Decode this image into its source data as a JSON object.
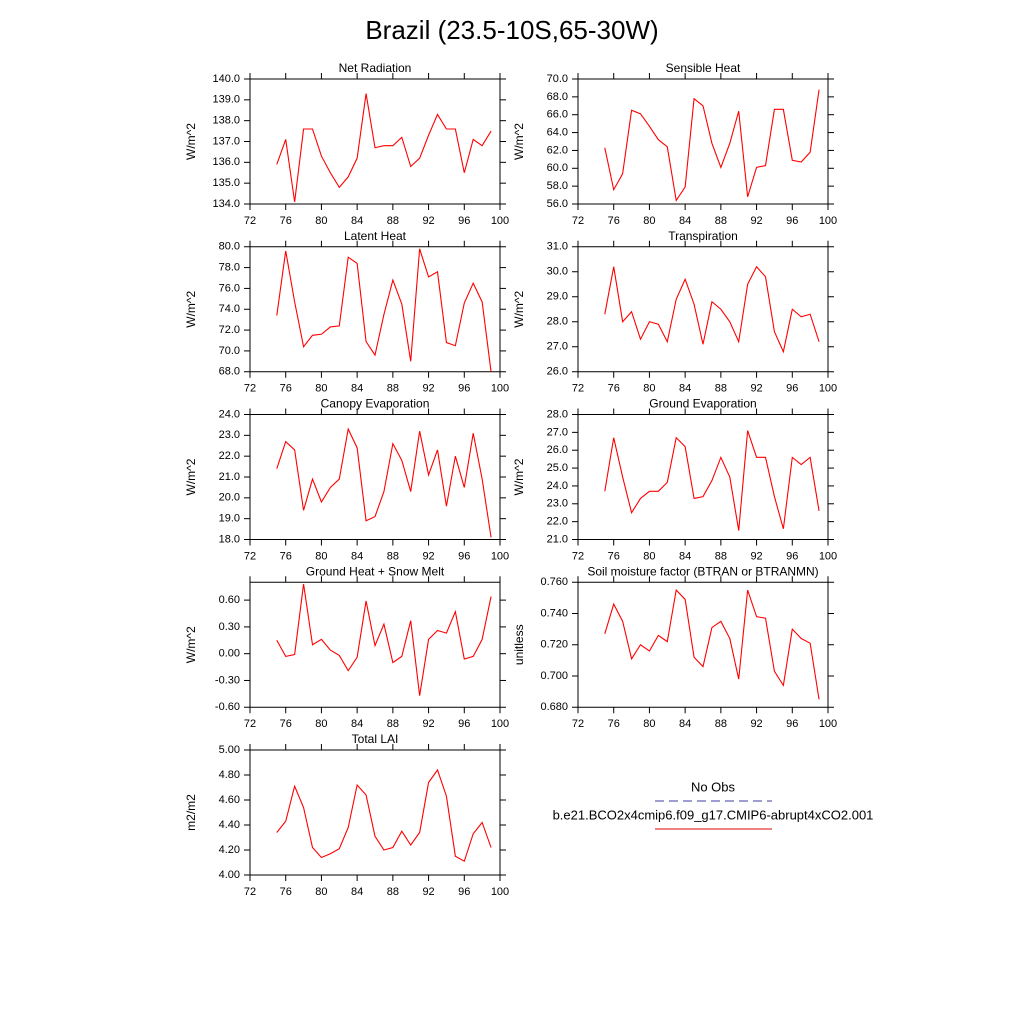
{
  "title": "Brazil (23.5-10S,65-30W)",
  "legend": [
    {
      "name": "No Obs",
      "color": "#3c3ca0",
      "style": "dashed"
    },
    {
      "name": "b.e21.BCO2x4cmip6.f09_g17.CMIP6-abrupt4xCO2.001",
      "color": "#e00000",
      "style": "solid"
    }
  ],
  "chart_data": [
    {
      "type": "line",
      "title": "Net Radiation",
      "ylabel": "W/m^2",
      "color": "#ff0000",
      "x": [
        75,
        76,
        77,
        78,
        79,
        80,
        81,
        82,
        83,
        84,
        85,
        86,
        87,
        88,
        89,
        90,
        91,
        92,
        93,
        94,
        95,
        96,
        97,
        98,
        99
      ],
      "values": [
        135.9,
        137.1,
        134.1,
        137.6,
        137.6,
        136.3,
        135.5,
        134.8,
        135.3,
        136.2,
        139.3,
        136.7,
        136.8,
        136.8,
        137.2,
        135.8,
        136.2,
        137.3,
        138.3,
        137.6,
        137.6,
        135.5,
        137.1,
        136.8,
        137.5
      ],
      "xlim": [
        72,
        100
      ],
      "xticks": [
        72,
        76,
        80,
        84,
        88,
        92,
        96,
        100
      ],
      "ylim": [
        134,
        140
      ],
      "yticks": [
        {
          "value": 134,
          "label": "134.0"
        },
        {
          "value": 135,
          "label": "135.0"
        },
        {
          "value": 136,
          "label": "136.0"
        },
        {
          "value": 137,
          "label": "137.0"
        },
        {
          "value": 138,
          "label": "138.0"
        },
        {
          "value": 139,
          "label": "139.0"
        },
        {
          "value": 140,
          "label": "140.0"
        }
      ]
    },
    {
      "type": "line",
      "title": "Sensible Heat",
      "ylabel": "W/m^2",
      "color": "#ff0000",
      "x": [
        75,
        76,
        77,
        78,
        79,
        80,
        81,
        82,
        83,
        84,
        85,
        86,
        87,
        88,
        89,
        90,
        91,
        92,
        93,
        94,
        95,
        96,
        97,
        98,
        99
      ],
      "values": [
        62.3,
        57.6,
        59.4,
        66.5,
        66.1,
        64.7,
        63.2,
        62.4,
        56.4,
        57.9,
        67.8,
        67.0,
        62.8,
        60.1,
        62.8,
        66.4,
        56.8,
        60.1,
        60.3,
        66.6,
        66.6,
        60.9,
        60.7,
        61.8,
        68.8
      ],
      "xlim": [
        72,
        100
      ],
      "xticks": [
        72,
        76,
        80,
        84,
        88,
        92,
        96,
        100
      ],
      "ylim": [
        56,
        70
      ],
      "yticks": [
        {
          "value": 56,
          "label": "56.0"
        },
        {
          "value": 58,
          "label": "58.0"
        },
        {
          "value": 60,
          "label": "60.0"
        },
        {
          "value": 62,
          "label": "62.0"
        },
        {
          "value": 64,
          "label": "64.0"
        },
        {
          "value": 66,
          "label": "66.0"
        },
        {
          "value": 68,
          "label": "68.0"
        },
        {
          "value": 70,
          "label": "70.0"
        }
      ]
    },
    {
      "type": "line",
      "title": "Latent Heat",
      "ylabel": "W/m^2",
      "color": "#ff0000",
      "x": [
        75,
        76,
        77,
        78,
        79,
        80,
        81,
        82,
        83,
        84,
        85,
        86,
        87,
        88,
        89,
        90,
        91,
        92,
        93,
        94,
        95,
        96,
        97,
        98,
        99
      ],
      "values": [
        73.4,
        79.6,
        74.7,
        70.4,
        71.5,
        71.6,
        72.3,
        72.4,
        79.0,
        78.4,
        70.9,
        69.6,
        73.5,
        76.8,
        74.5,
        69.0,
        79.8,
        77.1,
        77.6,
        70.8,
        70.5,
        74.6,
        76.5,
        74.7,
        68.0
      ],
      "xlim": [
        72,
        100
      ],
      "xticks": [
        72,
        76,
        80,
        84,
        88,
        92,
        96,
        100
      ],
      "ylim": [
        68,
        80
      ],
      "yticks": [
        {
          "value": 68,
          "label": "68.0"
        },
        {
          "value": 70,
          "label": "70.0"
        },
        {
          "value": 72,
          "label": "72.0"
        },
        {
          "value": 74,
          "label": "74.0"
        },
        {
          "value": 76,
          "label": "76.0"
        },
        {
          "value": 78,
          "label": "78.0"
        },
        {
          "value": 80,
          "label": "80.0"
        }
      ]
    },
    {
      "type": "line",
      "title": "Transpiration",
      "ylabel": "W/m^2",
      "color": "#ff0000",
      "x": [
        75,
        76,
        77,
        78,
        79,
        80,
        81,
        82,
        83,
        84,
        85,
        86,
        87,
        88,
        89,
        90,
        91,
        92,
        93,
        94,
        95,
        96,
        97,
        98,
        99
      ],
      "values": [
        28.3,
        30.2,
        28.0,
        28.4,
        27.3,
        28.0,
        27.9,
        27.2,
        28.9,
        29.7,
        28.7,
        27.1,
        28.8,
        28.5,
        28.0,
        27.2,
        29.5,
        30.2,
        29.8,
        27.6,
        26.8,
        28.5,
        28.2,
        28.3,
        27.2
      ],
      "xlim": [
        72,
        100
      ],
      "xticks": [
        72,
        76,
        80,
        84,
        88,
        92,
        96,
        100
      ],
      "ylim": [
        26,
        31
      ],
      "yticks": [
        {
          "value": 26,
          "label": "26.0"
        },
        {
          "value": 27,
          "label": "27.0"
        },
        {
          "value": 28,
          "label": "28.0"
        },
        {
          "value": 29,
          "label": "29.0"
        },
        {
          "value": 30,
          "label": "30.0"
        },
        {
          "value": 31,
          "label": "31.0"
        }
      ]
    },
    {
      "type": "line",
      "title": "Canopy Evaporation",
      "ylabel": "W/m^2",
      "color": "#ff0000",
      "x": [
        75,
        76,
        77,
        78,
        79,
        80,
        81,
        82,
        83,
        84,
        85,
        86,
        87,
        88,
        89,
        90,
        91,
        92,
        93,
        94,
        95,
        96,
        97,
        98,
        99
      ],
      "values": [
        21.4,
        22.7,
        22.3,
        19.4,
        20.9,
        19.8,
        20.5,
        20.9,
        23.3,
        22.4,
        18.9,
        19.1,
        20.3,
        22.6,
        21.8,
        20.3,
        23.2,
        21.1,
        22.3,
        19.6,
        22.0,
        20.5,
        23.1,
        20.9,
        18.1
      ],
      "xlim": [
        72,
        100
      ],
      "xticks": [
        72,
        76,
        80,
        84,
        88,
        92,
        96,
        100
      ],
      "ylim": [
        18,
        24
      ],
      "yticks": [
        {
          "value": 18,
          "label": "18.0"
        },
        {
          "value": 19,
          "label": "19.0"
        },
        {
          "value": 20,
          "label": "20.0"
        },
        {
          "value": 21,
          "label": "21.0"
        },
        {
          "value": 22,
          "label": "22.0"
        },
        {
          "value": 23,
          "label": "23.0"
        },
        {
          "value": 24,
          "label": "24.0"
        }
      ]
    },
    {
      "type": "line",
      "title": "Ground Evaporation",
      "ylabel": "W/m^2",
      "color": "#ff0000",
      "x": [
        75,
        76,
        77,
        78,
        79,
        80,
        81,
        82,
        83,
        84,
        85,
        86,
        87,
        88,
        89,
        90,
        91,
        92,
        93,
        94,
        95,
        96,
        97,
        98,
        99
      ],
      "values": [
        23.7,
        26.7,
        24.5,
        22.5,
        23.3,
        23.7,
        23.7,
        24.2,
        26.7,
        26.2,
        23.3,
        23.4,
        24.3,
        25.6,
        24.5,
        21.5,
        27.1,
        25.6,
        25.6,
        23.4,
        21.6,
        25.6,
        25.2,
        25.6,
        22.6
      ],
      "xlim": [
        72,
        100
      ],
      "xticks": [
        72,
        76,
        80,
        84,
        88,
        92,
        96,
        100
      ],
      "ylim": [
        21,
        28
      ],
      "yticks": [
        {
          "value": 21,
          "label": "21.0"
        },
        {
          "value": 22,
          "label": "22.0"
        },
        {
          "value": 23,
          "label": "23.0"
        },
        {
          "value": 24,
          "label": "24.0"
        },
        {
          "value": 25,
          "label": "25.0"
        },
        {
          "value": 26,
          "label": "26.0"
        },
        {
          "value": 27,
          "label": "27.0"
        },
        {
          "value": 28,
          "label": "28.0"
        }
      ]
    },
    {
      "type": "line",
      "title": "Ground Heat + Snow Melt",
      "ylabel": "W/m^2",
      "color": "#ff0000",
      "x": [
        75,
        76,
        77,
        78,
        79,
        80,
        81,
        82,
        83,
        84,
        85,
        86,
        87,
        88,
        89,
        90,
        91,
        92,
        93,
        94,
        95,
        96,
        97,
        98,
        99
      ],
      "values": [
        0.15,
        -0.03,
        -0.01,
        0.78,
        0.1,
        0.16,
        0.04,
        -0.02,
        -0.19,
        -0.04,
        0.59,
        0.09,
        0.33,
        -0.1,
        -0.03,
        0.37,
        -0.47,
        0.16,
        0.26,
        0.23,
        0.47,
        -0.06,
        -0.03,
        0.16,
        0.64
      ],
      "xlim": [
        72,
        100
      ],
      "xticks": [
        72,
        76,
        80,
        84,
        88,
        92,
        96,
        100
      ],
      "ylim": [
        -0.6,
        0.8
      ],
      "yticks": [
        {
          "value": -0.6,
          "label": "-0.60"
        },
        {
          "value": -0.3,
          "label": "-0.30"
        },
        {
          "value": 0,
          "label": "0.00"
        },
        {
          "value": 0.3,
          "label": "0.30"
        },
        {
          "value": 0.6,
          "label": "0.60"
        }
      ]
    },
    {
      "type": "line",
      "title": "Soil moisture factor (BTRAN or BTRANMN)",
      "ylabel": "unitless",
      "color": "#ff0000",
      "x": [
        75,
        76,
        77,
        78,
        79,
        80,
        81,
        82,
        83,
        84,
        85,
        86,
        87,
        88,
        89,
        90,
        91,
        92,
        93,
        94,
        95,
        96,
        97,
        98,
        99
      ],
      "values": [
        0.727,
        0.746,
        0.735,
        0.711,
        0.72,
        0.716,
        0.726,
        0.722,
        0.755,
        0.749,
        0.712,
        0.706,
        0.731,
        0.735,
        0.724,
        0.698,
        0.755,
        0.738,
        0.737,
        0.703,
        0.694,
        0.73,
        0.724,
        0.721,
        0.685
      ],
      "xlim": [
        72,
        100
      ],
      "xticks": [
        72,
        76,
        80,
        84,
        88,
        92,
        96,
        100
      ],
      "ylim": [
        0.68,
        0.76
      ],
      "yticks": [
        {
          "value": 0.68,
          "label": "0.680"
        },
        {
          "value": 0.7,
          "label": "0.700"
        },
        {
          "value": 0.72,
          "label": "0.720"
        },
        {
          "value": 0.74,
          "label": "0.740"
        },
        {
          "value": 0.76,
          "label": "0.760"
        }
      ]
    },
    {
      "type": "line",
      "title": "Total LAI",
      "ylabel": "m2/m2",
      "color": "#ff0000",
      "x": [
        75,
        76,
        77,
        78,
        79,
        80,
        81,
        82,
        83,
        84,
        85,
        86,
        87,
        88,
        89,
        90,
        91,
        92,
        93,
        94,
        95,
        96,
        97,
        98,
        99
      ],
      "values": [
        4.34,
        4.43,
        4.71,
        4.54,
        4.22,
        4.14,
        4.17,
        4.21,
        4.38,
        4.72,
        4.64,
        4.31,
        4.2,
        4.22,
        4.35,
        4.24,
        4.34,
        4.74,
        4.84,
        4.63,
        4.15,
        4.11,
        4.33,
        4.42,
        4.22
      ],
      "xlim": [
        72,
        100
      ],
      "xticks": [
        72,
        76,
        80,
        84,
        88,
        92,
        96,
        100
      ],
      "ylim": [
        4,
        5
      ],
      "yticks": [
        {
          "value": 4,
          "label": "4.00"
        },
        {
          "value": 4.2,
          "label": "4.20"
        },
        {
          "value": 4.4,
          "label": "4.40"
        },
        {
          "value": 4.6,
          "label": "4.60"
        },
        {
          "value": 4.8,
          "label": "4.80"
        },
        {
          "value": 5,
          "label": "5.00"
        }
      ]
    }
  ]
}
